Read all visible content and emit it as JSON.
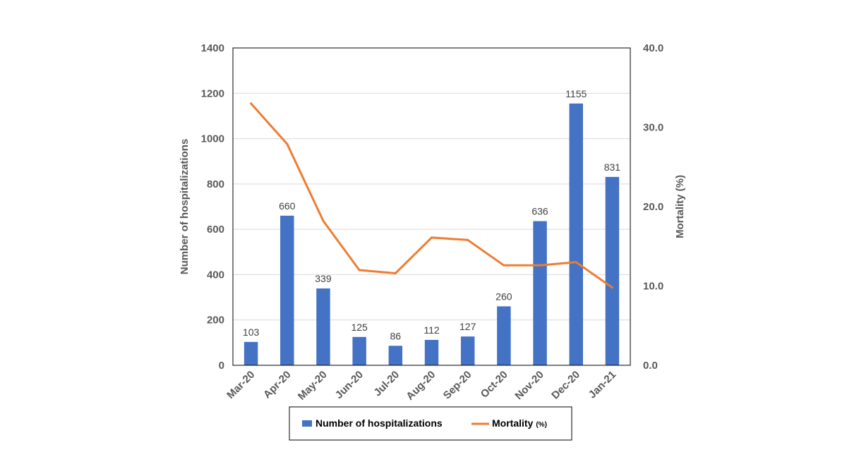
{
  "chart_data": {
    "type": "bar",
    "categories": [
      "Mar-20",
      "Apr-20",
      "May-20",
      "Jun-20",
      "Jul-20",
      "Aug-20",
      "Sep-20",
      "Oct-20",
      "Nov-20",
      "Dec-20",
      "Jan-21"
    ],
    "series": [
      {
        "name": "Number of hospitalizations",
        "type": "bar",
        "axis": "left",
        "color": "#4472c4",
        "values": [
          103,
          660,
          339,
          125,
          86,
          112,
          127,
          260,
          636,
          1155,
          831
        ],
        "data_labels": [
          "103",
          "660",
          "339",
          "125",
          "86",
          "112",
          "127",
          "260",
          "636",
          "1155",
          "831"
        ]
      },
      {
        "name": "Mortality",
        "name_unit": "(%)",
        "type": "line",
        "axis": "right",
        "color": "#ed7d31",
        "values": [
          33.0,
          27.9,
          18.2,
          12.0,
          11.6,
          16.1,
          15.8,
          12.6,
          12.6,
          13.0,
          9.8
        ]
      }
    ],
    "ylabel": "Number of hospitalizations",
    "ylim": [
      0,
      1400
    ],
    "yticks": [
      "0",
      "200",
      "400",
      "600",
      "800",
      "1000",
      "1200",
      "1400"
    ],
    "y2label": "Mortality (%)",
    "y2lim": [
      0,
      40
    ],
    "y2ticks": [
      "0.0",
      "10.0",
      "20.0",
      "30.0",
      "40.0"
    ],
    "grid": true,
    "legend_position": "bottom"
  }
}
